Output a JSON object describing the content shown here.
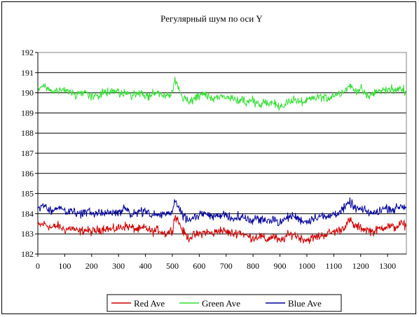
{
  "chart_data": {
    "type": "line",
    "title": "Регулярный шум по оси Y",
    "xlabel": "",
    "ylabel": "",
    "xlim": [
      0,
      1370
    ],
    "ylim": [
      182,
      192
    ],
    "x_ticks": [
      "0",
      "100",
      "200",
      "300",
      "400",
      "500",
      "600",
      "700",
      "800",
      "900",
      "1000",
      "1100",
      "1200",
      "1300"
    ],
    "y_ticks": [
      "182",
      "183",
      "184",
      "185",
      "186",
      "187",
      "188",
      "189",
      "190",
      "191",
      "192"
    ],
    "grid": "horizontal",
    "legend_position": "bottom",
    "series": [
      {
        "name": "Red Ave",
        "color": "#cc0000",
        "x": [
          0,
          25,
          50,
          75,
          100,
          125,
          150,
          175,
          200,
          225,
          250,
          275,
          300,
          325,
          350,
          375,
          400,
          425,
          450,
          475,
          500,
          510,
          520,
          540,
          560,
          575,
          600,
          625,
          650,
          675,
          700,
          725,
          750,
          775,
          800,
          825,
          850,
          875,
          900,
          925,
          950,
          975,
          1000,
          1025,
          1050,
          1075,
          1100,
          1125,
          1150,
          1160,
          1175,
          1200,
          1225,
          1250,
          1275,
          1300,
          1325,
          1350,
          1370
        ],
        "values": [
          183.4,
          183.5,
          183.3,
          183.4,
          183.2,
          183.3,
          183.1,
          183.2,
          183.1,
          183.2,
          183.3,
          183.2,
          183.3,
          183.4,
          183.3,
          183.2,
          183.3,
          183.1,
          183.2,
          183.0,
          183.2,
          183.9,
          183.7,
          183.1,
          182.8,
          182.9,
          183.0,
          183.1,
          183.0,
          183.2,
          183.1,
          183.0,
          183.1,
          182.9,
          182.8,
          182.9,
          182.7,
          182.9,
          182.6,
          182.9,
          183.0,
          182.8,
          182.7,
          182.8,
          182.9,
          183.0,
          183.1,
          183.2,
          183.5,
          183.7,
          183.4,
          183.3,
          183.2,
          183.1,
          183.3,
          183.4,
          183.3,
          183.5,
          183.4
        ]
      },
      {
        "name": "Green Ave",
        "color": "#33dd33",
        "x": [
          0,
          25,
          50,
          75,
          100,
          125,
          150,
          175,
          200,
          225,
          250,
          275,
          300,
          325,
          350,
          375,
          400,
          425,
          450,
          475,
          500,
          510,
          520,
          540,
          560,
          575,
          600,
          625,
          650,
          675,
          700,
          725,
          750,
          775,
          800,
          825,
          850,
          875,
          900,
          925,
          950,
          975,
          1000,
          1025,
          1050,
          1075,
          1100,
          1125,
          1150,
          1160,
          1175,
          1200,
          1225,
          1250,
          1275,
          1300,
          1325,
          1350,
          1370
        ],
        "values": [
          190.2,
          190.3,
          190.0,
          190.1,
          190.1,
          190.0,
          189.9,
          190.0,
          189.8,
          189.9,
          190.0,
          190.0,
          190.1,
          190.0,
          189.9,
          190.0,
          189.8,
          189.9,
          190.0,
          189.8,
          190.0,
          190.6,
          190.3,
          189.8,
          189.6,
          189.7,
          189.8,
          189.9,
          189.7,
          189.8,
          189.8,
          189.7,
          189.6,
          189.5,
          189.6,
          189.4,
          189.5,
          189.6,
          189.2,
          189.5,
          189.7,
          189.5,
          189.6,
          189.7,
          189.8,
          189.7,
          189.9,
          190.0,
          190.2,
          190.4,
          190.1,
          190.2,
          189.8,
          190.0,
          190.1,
          190.2,
          190.1,
          190.2,
          190.1
        ]
      },
      {
        "name": "Blue Ave",
        "color": "#000099",
        "x": [
          0,
          25,
          50,
          75,
          100,
          125,
          150,
          175,
          200,
          225,
          250,
          275,
          300,
          325,
          350,
          375,
          400,
          425,
          450,
          475,
          500,
          510,
          520,
          540,
          560,
          575,
          600,
          625,
          650,
          675,
          700,
          725,
          750,
          775,
          800,
          825,
          850,
          875,
          900,
          925,
          950,
          975,
          1000,
          1025,
          1050,
          1075,
          1100,
          1125,
          1150,
          1160,
          1175,
          1200,
          1225,
          1250,
          1275,
          1300,
          1325,
          1350,
          1370
        ],
        "values": [
          184.3,
          184.4,
          184.1,
          184.3,
          184.2,
          184.1,
          184.0,
          184.1,
          184.0,
          184.0,
          184.1,
          184.0,
          184.1,
          184.2,
          184.0,
          184.1,
          184.1,
          183.9,
          184.0,
          183.9,
          184.1,
          184.7,
          184.4,
          183.9,
          183.7,
          183.8,
          183.9,
          184.0,
          183.8,
          184.0,
          183.9,
          183.8,
          183.9,
          183.7,
          183.7,
          183.8,
          183.6,
          183.8,
          183.5,
          183.8,
          183.9,
          183.7,
          183.6,
          183.8,
          183.9,
          183.8,
          184.0,
          184.1,
          184.4,
          184.6,
          184.3,
          184.2,
          184.1,
          184.0,
          184.2,
          184.3,
          184.2,
          184.4,
          184.3
        ]
      }
    ]
  }
}
